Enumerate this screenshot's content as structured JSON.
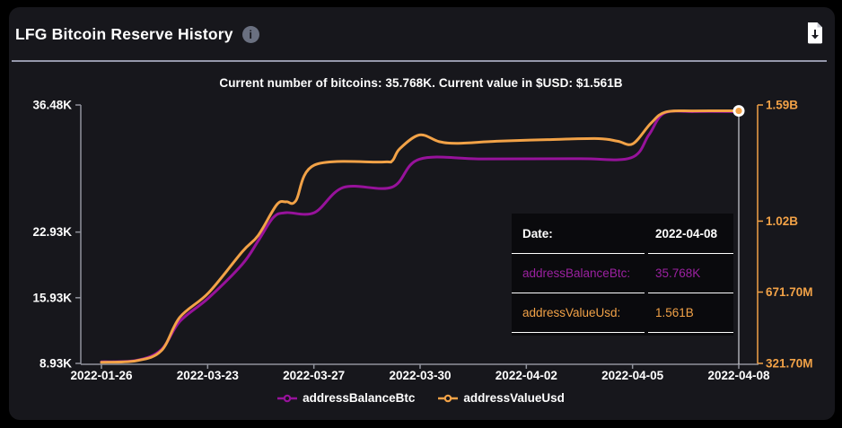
{
  "header": {
    "title": "LFG Bitcoin Reserve History",
    "info_glyph": "i"
  },
  "subtitle": "Current number of bitcoins: 35.768K. Current value in $USD: $1.561B",
  "colors": {
    "background": "#000000",
    "card": "#17171c",
    "divider": "#9598ab",
    "axis_gray": "#90929c",
    "text_white": "#ffffff",
    "btc_purple": "#97129b",
    "usd_orange": "#f2a247",
    "tooltip_bg": "#09090d",
    "tooltip_btc_text": "#9b21a0",
    "crosshair": "#cfd1d8",
    "info_icon_bg": "#6a7080"
  },
  "chart_data": {
    "type": "line",
    "title": "Current number of bitcoins: 35.768K. Current value in $USD: $1.561B",
    "x_ticks": [
      "2022-01-26",
      "2022-03-23",
      "2022-03-27",
      "2022-03-30",
      "2022-04-02",
      "2022-04-05",
      "2022-04-08"
    ],
    "left_axis": {
      "name": "addressBalanceBtc",
      "unit": "K BTC",
      "min": 8.93,
      "max": 36.48,
      "ticks": [
        {
          "label": "36.48K",
          "value": 36.48
        },
        {
          "label": "22.93K",
          "value": 22.93
        },
        {
          "label": "15.93K",
          "value": 15.93
        },
        {
          "label": "8.93K",
          "value": 8.93
        }
      ]
    },
    "right_axis": {
      "name": "addressValueUsd",
      "unit": "USD",
      "min": 0.3217,
      "max": 1.59,
      "ticks": [
        {
          "label": "1.59B",
          "value": 1.59
        },
        {
          "label": "1.02B",
          "value": 1.02
        },
        {
          "label": "671.70M",
          "value": 0.6717
        },
        {
          "label": "321.70M",
          "value": 0.3217
        }
      ]
    },
    "series": [
      {
        "name": "addressBalanceBtc",
        "axis": "left",
        "color": "#97129b",
        "points": [
          [
            0,
            9.1
          ],
          [
            0.055,
            9.25
          ],
          [
            0.094,
            10.4
          ],
          [
            0.123,
            13.4
          ],
          [
            0.168,
            15.9
          ],
          [
            0.221,
            19.5
          ],
          [
            0.246,
            22.0
          ],
          [
            0.27,
            24.5
          ],
          [
            0.29,
            25.0
          ],
          [
            0.334,
            25.0
          ],
          [
            0.38,
            27.7
          ],
          [
            0.456,
            27.72
          ],
          [
            0.499,
            30.7
          ],
          [
            0.6,
            30.73
          ],
          [
            0.75,
            30.75
          ],
          [
            0.831,
            30.85
          ],
          [
            0.859,
            33.3
          ],
          [
            0.883,
            35.6
          ],
          [
            0.93,
            35.77
          ],
          [
            1,
            35.768
          ]
        ]
      },
      {
        "name": "addressValueUsd",
        "axis": "right",
        "color": "#f2a247",
        "points": [
          [
            0,
            0.327
          ],
          [
            0.055,
            0.335
          ],
          [
            0.094,
            0.384
          ],
          [
            0.123,
            0.548
          ],
          [
            0.168,
            0.668
          ],
          [
            0.221,
            0.87
          ],
          [
            0.246,
            0.95
          ],
          [
            0.275,
            1.1
          ],
          [
            0.29,
            1.115
          ],
          [
            0.305,
            1.12
          ],
          [
            0.334,
            1.295
          ],
          [
            0.44,
            1.31
          ],
          [
            0.456,
            1.315
          ],
          [
            0.468,
            1.375
          ],
          [
            0.499,
            1.443
          ],
          [
            0.53,
            1.41
          ],
          [
            0.56,
            1.402
          ],
          [
            0.62,
            1.412
          ],
          [
            0.7,
            1.42
          ],
          [
            0.78,
            1.425
          ],
          [
            0.81,
            1.412
          ],
          [
            0.834,
            1.4
          ],
          [
            0.862,
            1.5
          ],
          [
            0.885,
            1.555
          ],
          [
            0.93,
            1.561
          ],
          [
            1,
            1.561
          ]
        ]
      }
    ],
    "legend": [
      {
        "label": "addressBalanceBtc",
        "color": "#97129b"
      },
      {
        "label": "addressValueUsd",
        "color": "#f2a247"
      }
    ],
    "current": {
      "btc": "35.768K",
      "usd": "1.561B"
    },
    "highlight": {
      "t": 1.0,
      "value": 1.561,
      "axis": "right",
      "date": "2022-04-08"
    }
  },
  "tooltip": {
    "rows": [
      {
        "label": "Date:",
        "value": "2022-04-08",
        "color": "#ffffff",
        "bold": true
      },
      {
        "label": "addressBalanceBtc:",
        "value": "35.768K",
        "color": "#9b21a0",
        "bold": false
      },
      {
        "label": "addressValueUsd:",
        "value": "1.561B",
        "color": "#f2a247",
        "bold": false
      }
    ]
  }
}
